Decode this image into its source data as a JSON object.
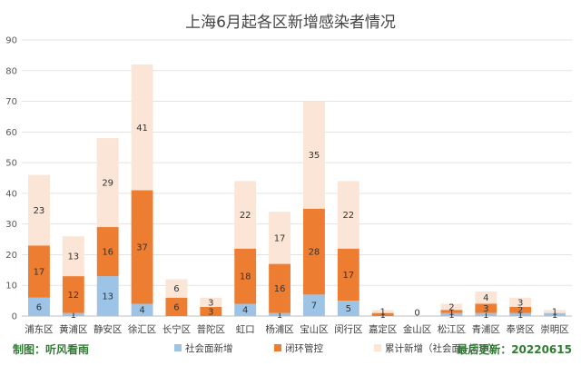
{
  "chart_data": {
    "type": "bar",
    "stacked": true,
    "title": "上海6月起各区新增感染者情况",
    "categories": [
      "浦东区",
      "黄浦区",
      "静安区",
      "徐汇区",
      "长宁区",
      "普陀区",
      "虹口",
      "杨浦区",
      "宝山区",
      "闵行区",
      "嘉定区",
      "金山区",
      "松江区",
      "青浦区",
      "奉贤区",
      "崇明区"
    ],
    "series": [
      {
        "name": "社会面新增",
        "color": "#9dc3e6",
        "values": [
          6,
          1,
          13,
          4,
          0,
          0,
          4,
          1,
          7,
          5,
          0,
          0,
          1,
          1,
          1,
          1
        ]
      },
      {
        "name": "闭环管控",
        "color": "#ed7d31",
        "values": [
          17,
          12,
          16,
          37,
          6,
          3,
          18,
          16,
          28,
          17,
          1,
          0,
          1,
          3,
          2,
          0
        ]
      },
      {
        "name": "累计新增（社会面+闭环）",
        "color": "#fbe5d6",
        "values": [
          23,
          13,
          29,
          41,
          6,
          3,
          22,
          17,
          35,
          22,
          1,
          0,
          2,
          4,
          3,
          1
        ]
      }
    ],
    "labels": {
      "s0": [
        "6",
        "1",
        "13",
        "4",
        "",
        "",
        "4",
        "1",
        "7",
        "5",
        "",
        "",
        "1",
        "1",
        "1",
        "1"
      ],
      "s1": [
        "17",
        "12",
        "16",
        "37",
        "6",
        "3",
        "18",
        "16",
        "28",
        "17",
        "1",
        "",
        "1",
        "3",
        "2",
        ""
      ],
      "s2": [
        "23",
        "13",
        "29",
        "41",
        "6",
        "3",
        "22",
        "17",
        "35",
        "22",
        "1",
        "0",
        "2",
        "4",
        "3",
        "1"
      ]
    },
    "ylim": [
      0,
      90
    ],
    "yticks": [
      0,
      10,
      20,
      30,
      40,
      50,
      60,
      70,
      80,
      90
    ],
    "grid": true,
    "legend_position": "bottom"
  },
  "footer": {
    "left": "制图：听风看雨",
    "right": "最后更新：20220615"
  }
}
